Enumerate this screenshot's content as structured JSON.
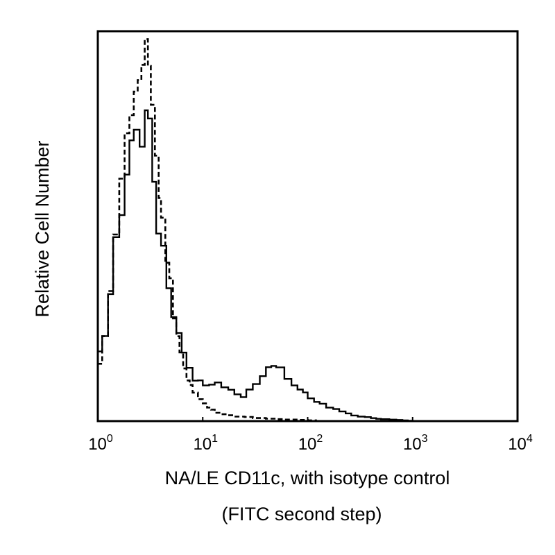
{
  "chart_data": {
    "type": "line",
    "title": "",
    "xlabel_line1": "NA/LE CD11c, with isotype control",
    "xlabel_line2": "(FITC second step)",
    "ylabel": "Relative Cell Number",
    "x_scale": "log",
    "xlim": [
      1,
      10000
    ],
    "ylim": [
      0,
      100
    ],
    "y_ticks": false,
    "grid": false,
    "legend": "none",
    "x_ticks": [
      {
        "value": 1,
        "base": "10",
        "exp": "0"
      },
      {
        "value": 10,
        "base": "10",
        "exp": "1"
      },
      {
        "value": 100,
        "base": "10",
        "exp": "2"
      },
      {
        "value": 1000,
        "base": "10",
        "exp": "3"
      },
      {
        "value": 10000,
        "base": "10",
        "exp": "4"
      }
    ],
    "series": [
      {
        "style": "solid",
        "color": "#000000",
        "x": [
          1.0,
          1.1,
          1.25,
          1.4,
          1.6,
          1.8,
          2.0,
          2.2,
          2.5,
          2.8,
          3.0,
          3.3,
          3.6,
          4.0,
          4.5,
          5.0,
          5.6,
          6.3,
          7.0,
          8.0,
          9.0,
          10,
          11.5,
          13,
          15,
          17.5,
          20,
          23,
          26,
          30,
          35,
          40,
          45,
          50,
          60,
          70,
          80,
          90,
          100,
          115,
          130,
          150,
          175,
          200,
          230,
          260,
          300,
          350,
          400,
          450,
          500,
          600,
          700,
          800,
          900,
          1000,
          1150
        ],
        "values": [
          13,
          17,
          23,
          33,
          45,
          55,
          64,
          72,
          74,
          72,
          82,
          75,
          62,
          50,
          45,
          35,
          28,
          22,
          18,
          14,
          11,
          10,
          9.5,
          9,
          10,
          9,
          8,
          7,
          6,
          8,
          10,
          12,
          14,
          15,
          13,
          11,
          9,
          8,
          7,
          6,
          5,
          4.5,
          3.5,
          3,
          2.5,
          2,
          1.5,
          1.2,
          1.0,
          0.8,
          0.6,
          0.5,
          0.4,
          0.3,
          0.2,
          0.1,
          0
        ]
      },
      {
        "style": "dashed",
        "color": "#000000",
        "x": [
          1.0,
          1.1,
          1.25,
          1.4,
          1.6,
          1.8,
          2.0,
          2.2,
          2.4,
          2.6,
          2.8,
          3.0,
          3.2,
          3.5,
          3.8,
          4.0,
          4.4,
          4.8,
          5.2,
          5.6,
          6.0,
          6.5,
          7.0,
          7.5,
          8.0,
          9.0,
          10,
          11,
          12,
          13,
          15,
          17,
          20,
          25,
          30,
          40,
          50,
          60,
          80,
          100,
          120,
          150
        ],
        "values": [
          12,
          15,
          22,
          35,
          48,
          62,
          72,
          78,
          83,
          88,
          94,
          98,
          92,
          82,
          70,
          60,
          50,
          42,
          35,
          28,
          23,
          18,
          14,
          11,
          9,
          7,
          5.5,
          4.5,
          3.5,
          3,
          2.2,
          1.8,
          1.5,
          1.2,
          1.0,
          0.8,
          0.6,
          0.5,
          0.4,
          0.3,
          0.2,
          0
        ]
      }
    ]
  }
}
